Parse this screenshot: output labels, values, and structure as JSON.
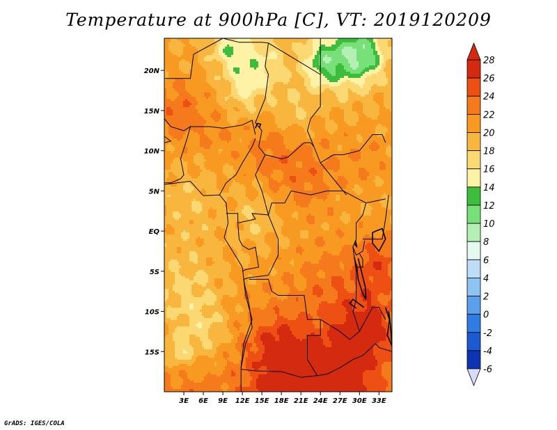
{
  "title": "Temperature at 900hPa [C], VT: 2019120209",
  "credit": "GrADS: IGES/COLA",
  "map": {
    "lon_range": [
      0,
      35
    ],
    "lat_range": [
      -20,
      24
    ],
    "lat_ticks": [
      {
        "value": 20,
        "label": "20N"
      },
      {
        "value": 15,
        "label": "15N"
      },
      {
        "value": 10,
        "label": "10N"
      },
      {
        "value": 5,
        "label": "5N"
      },
      {
        "value": 0,
        "label": "EQ"
      },
      {
        "value": -5,
        "label": "5S"
      },
      {
        "value": -10,
        "label": "10S"
      },
      {
        "value": -15,
        "label": "15S"
      }
    ],
    "lon_ticks": [
      {
        "value": 3,
        "label": "3E"
      },
      {
        "value": 6,
        "label": "6E"
      },
      {
        "value": 9,
        "label": "9E"
      },
      {
        "value": 12,
        "label": "12E"
      },
      {
        "value": 15,
        "label": "15E"
      },
      {
        "value": 18,
        "label": "18E"
      },
      {
        "value": 21,
        "label": "21E"
      },
      {
        "value": 24,
        "label": "24E"
      },
      {
        "value": 27,
        "label": "27E"
      },
      {
        "value": 30,
        "label": "30E"
      },
      {
        "value": 33,
        "label": "33E"
      }
    ]
  },
  "colorbar": {
    "levels": [
      "28",
      "26",
      "24",
      "22",
      "20",
      "18",
      "16",
      "14",
      "12",
      "10",
      "8",
      "6",
      "4",
      "2",
      "0",
      "-2",
      "-4",
      "-6"
    ],
    "colors": [
      "#d42a10",
      "#ee5014",
      "#f47a1c",
      "#f89a22",
      "#f9b63e",
      "#fcd873",
      "#fdf2a6",
      "#3cbe3c",
      "#78e078",
      "#b4f0b4",
      "#e4faf0",
      "#bedcf8",
      "#8cc4f4",
      "#5aa0ec",
      "#2e7ce4",
      "#1c5ad2",
      "#0e34b4",
      "#0a1478"
    ],
    "under_color": "#d8dcf8",
    "over_color": "#d42a10"
  }
}
